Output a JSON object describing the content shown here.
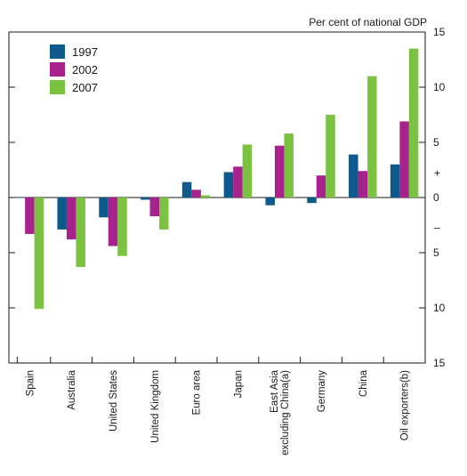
{
  "chart_data": {
    "type": "bar",
    "unit_label": "Per cent of national GDP",
    "categories": [
      "Spain",
      "Australia",
      "United States",
      "United Kingdom",
      "Euro area",
      "Japan",
      "East Asia excluding China(a)",
      "Germany",
      "China",
      "Oil exporters(b)"
    ],
    "category_lines": [
      [
        "Spain"
      ],
      [
        "Australia"
      ],
      [
        "United States"
      ],
      [
        "United Kingdom"
      ],
      [
        "Euro area"
      ],
      [
        "Japan"
      ],
      [
        "East Asia",
        "excluding China(a)"
      ],
      [
        "Germany"
      ],
      [
        "China"
      ],
      [
        "Oil exporters(b)"
      ]
    ],
    "series": [
      {
        "name": "1997",
        "color": "#0f5a8c",
        "values": [
          0.0,
          -2.9,
          -1.8,
          -0.2,
          1.4,
          2.3,
          -0.7,
          -0.5,
          3.9,
          3.0
        ]
      },
      {
        "name": "2002",
        "color": "#a8228e",
        "values": [
          -3.3,
          -3.8,
          -4.4,
          -1.7,
          0.7,
          2.8,
          4.7,
          2.0,
          2.4,
          6.9
        ]
      },
      {
        "name": "2007",
        "color": "#7cc242",
        "values": [
          -10.1,
          -6.3,
          -5.3,
          -2.9,
          0.2,
          4.8,
          5.8,
          7.5,
          11.0,
          13.5
        ]
      }
    ],
    "ylim": [
      -15,
      15
    ],
    "right_axis": {
      "ticks": [
        15,
        10,
        5,
        0,
        -5,
        -10,
        -15
      ],
      "labels": [
        "15",
        "10",
        "5",
        "0",
        "5",
        "10",
        "15"
      ]
    },
    "sign_markers": {
      "positive": "+",
      "negative": "–"
    },
    "gridlines": false,
    "legend_position": "top-left"
  }
}
